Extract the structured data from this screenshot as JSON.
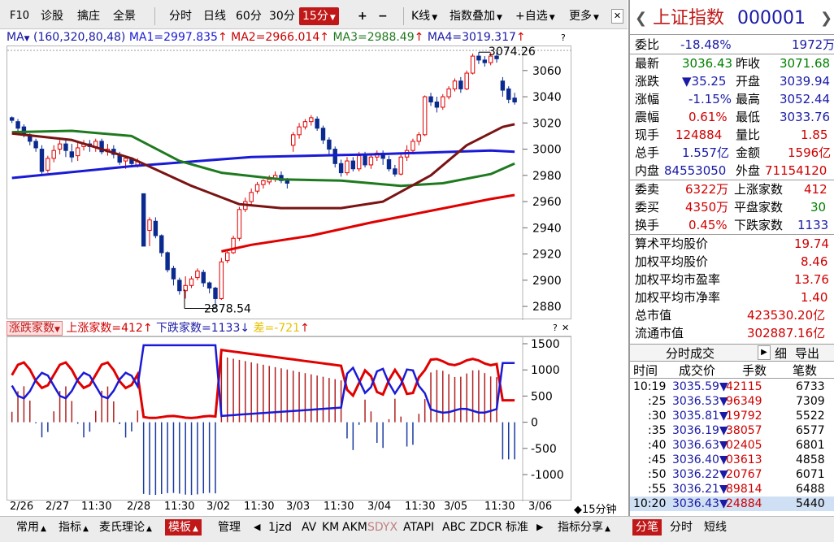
{
  "toolbar": {
    "items": [
      "F10",
      "诊股",
      "擒庄",
      "全景",
      "分时",
      "日线",
      "60分",
      "30分",
      "15分",
      "+",
      "−",
      "K线",
      "指数叠加",
      "+自选",
      "更多"
    ]
  },
  "ma": {
    "label": "MA",
    "params": "(160,320,80,48)",
    "ma1": "MA1=2997.835",
    "ma2": "MA2=2966.014",
    "ma3": "MA3=2988.49",
    "ma4": "MA4=3019.317",
    "question": "?"
  },
  "chart_data": [
    {
      "type": "candlestick",
      "yticks": [
        "3060",
        "3040",
        "3020",
        "3000",
        "2980",
        "2960",
        "2940",
        "2920",
        "2900",
        "2880"
      ],
      "ylim": [
        2872,
        3076
      ],
      "high_label": "3074.26",
      "low_label": "2878.54",
      "x_date_labels": [
        "2/26",
        "2/27",
        "11:30",
        "2/28",
        "11:30",
        "3/02",
        "11:30",
        "3/03",
        "11:30",
        "3/04",
        "11:30",
        "3/05",
        "11:30",
        "3/06"
      ],
      "period_label": "◆15分钟",
      "candles": [
        [
          3024,
          3022,
          3025,
          3020
        ],
        [
          3021,
          3016,
          3023,
          3013
        ],
        [
          3017,
          3012,
          3019,
          3009
        ],
        [
          3011,
          3006,
          3012,
          3003
        ],
        [
          3006,
          3001,
          3008,
          2998
        ],
        [
          3000,
          2983,
          3003,
          2980
        ],
        [
          2984,
          2993,
          2995,
          2982
        ],
        [
          2993,
          2999,
          3003,
          2990
        ],
        [
          3000,
          3004,
          3007,
          2996
        ],
        [
          3004,
          2999,
          3007,
          2994
        ],
        [
          2998,
          2994,
          3004,
          2990
        ],
        [
          2995,
          3001,
          3005,
          2991
        ],
        [
          3002,
          3004,
          3007,
          2999
        ],
        [
          3004,
          3002,
          3007,
          2998
        ],
        [
          3002,
          3006,
          3008,
          2998
        ],
        [
          3006,
          2998,
          3008,
          2996
        ],
        [
          2998,
          3000,
          3004,
          2995
        ],
        [
          3000,
          2996,
          3003,
          2993
        ],
        [
          2995,
          2990,
          2998,
          2988
        ],
        [
          2991,
          2993,
          2995,
          2985
        ],
        [
          2993,
          2989,
          2994,
          2986
        ],
        [
          2988,
          2991,
          2993,
          2986
        ],
        [
          2966,
          2926,
          2966,
          2926
        ],
        [
          2938,
          2946,
          2948,
          2926
        ],
        [
          2945,
          2934,
          2948,
          2932
        ],
        [
          2934,
          2921,
          2935,
          2918
        ],
        [
          2921,
          2908,
          2922,
          2906
        ],
        [
          2909,
          2901,
          2911,
          2896
        ],
        [
          2900,
          2892,
          2902,
          2889
        ],
        [
          2892,
          2896,
          2903,
          2886
        ],
        [
          2896,
          2901,
          2903,
          2894
        ],
        [
          2902,
          2907,
          2909,
          2900
        ],
        [
          2906,
          2898,
          2908,
          2895
        ],
        [
          2898,
          2894,
          2899,
          2890
        ],
        [
          2894,
          2886,
          2895,
          2879
        ],
        [
          2886,
          2914,
          2917,
          2885
        ],
        [
          2915,
          2921,
          2923,
          2913
        ],
        [
          2921,
          2932,
          2934,
          2920
        ],
        [
          2932,
          2954,
          2956,
          2930
        ],
        [
          2954,
          2960,
          2963,
          2952
        ],
        [
          2960,
          2967,
          2970,
          2958
        ],
        [
          2968,
          2973,
          2975,
          2966
        ],
        [
          2973,
          2976,
          2977,
          2970
        ],
        [
          2975,
          2977,
          2980,
          2973
        ],
        [
          2977,
          2980,
          2983,
          2975
        ],
        [
          2980,
          2976,
          2983,
          2974
        ],
        [
          2976,
          2974,
          2978,
          2970
        ],
        [
          3003,
          3011,
          3013,
          2998
        ],
        [
          3011,
          3017,
          3020,
          3008
        ],
        [
          3017,
          3021,
          3023,
          3015
        ],
        [
          3021,
          3024,
          3026,
          3018
        ],
        [
          3023,
          3016,
          3025,
          3014
        ],
        [
          3016,
          3007,
          3018,
          3004
        ],
        [
          3007,
          3000,
          3009,
          2996
        ],
        [
          3000,
          2989,
          3002,
          2986
        ],
        [
          2989,
          2982,
          2992,
          2979
        ],
        [
          2982,
          2991,
          2994,
          2980
        ],
        [
          2991,
          2985,
          2994,
          2983
        ],
        [
          2985,
          2995,
          2998,
          2983
        ],
        [
          2995,
          2988,
          2998,
          2986
        ],
        [
          2988,
          2994,
          2997,
          2985
        ],
        [
          2994,
          2997,
          2999,
          2991
        ],
        [
          2997,
          2993,
          2999,
          2988
        ],
        [
          2992,
          2985,
          2995,
          2983
        ],
        [
          2985,
          2981,
          2988,
          2979
        ],
        [
          2981,
          2994,
          2996,
          2980
        ],
        [
          2994,
          2999,
          3003,
          2991
        ],
        [
          2999,
          3006,
          3008,
          2996
        ],
        [
          3006,
          3011,
          3013,
          3003
        ],
        [
          3011,
          3040,
          3041,
          3010
        ],
        [
          3040,
          3036,
          3043,
          3033
        ],
        [
          3036,
          3032,
          3040,
          3028
        ],
        [
          3032,
          3040,
          3042,
          3030
        ],
        [
          3040,
          3046,
          3048,
          3038
        ],
        [
          3046,
          3052,
          3054,
          3044
        ],
        [
          3052,
          3046,
          3055,
          3043
        ],
        [
          3046,
          3058,
          3060,
          3045
        ],
        [
          3058,
          3071,
          3073,
          3057
        ],
        [
          3071,
          3068,
          3074,
          3065
        ],
        [
          3068,
          3066,
          3071,
          3063
        ],
        [
          3066,
          3071,
          3074,
          3064
        ],
        [
          3071,
          3069,
          3074,
          3066
        ],
        [
          3052,
          3045,
          3055,
          3040
        ],
        [
          3046,
          3038,
          3048,
          3035
        ],
        [
          3039,
          3036,
          3043,
          3034
        ]
      ],
      "ma_series": [
        {
          "name": "MA1",
          "color": "#1a1ad6",
          "points": [
            [
              0,
              2978
            ],
            [
              20,
              2987
            ],
            [
              40,
              2994
            ],
            [
              60,
              2996
            ],
            [
              80,
              2999
            ],
            [
              84,
              2998
            ]
          ]
        },
        {
          "name": "MA2",
          "color": "#e00000",
          "points": [
            [
              35,
              2922
            ],
            [
              40,
              2927
            ],
            [
              50,
              2934
            ],
            [
              60,
              2944
            ],
            [
              70,
              2953
            ],
            [
              80,
              2962
            ],
            [
              84,
              2965
            ]
          ]
        },
        {
          "name": "MA3",
          "color": "#1f7a1f",
          "points": [
            [
              0,
              3013
            ],
            [
              10,
              3014
            ],
            [
              20,
              3010
            ],
            [
              28,
              2991
            ],
            [
              35,
              2982
            ],
            [
              45,
              2977
            ],
            [
              55,
              2976
            ],
            [
              65,
              2972
            ],
            [
              72,
              2974
            ],
            [
              80,
              2981
            ],
            [
              84,
              2989
            ]
          ]
        },
        {
          "name": "MA4",
          "color": "#7a1414",
          "points": [
            [
              0,
              3012
            ],
            [
              10,
              3007
            ],
            [
              20,
              2993
            ],
            [
              30,
              2972
            ],
            [
              38,
              2958
            ],
            [
              45,
              2955
            ],
            [
              55,
              2955
            ],
            [
              62,
              2960
            ],
            [
              70,
              2980
            ],
            [
              76,
              3003
            ],
            [
              82,
              3017
            ],
            [
              84,
              3019
            ]
          ]
        }
      ]
    },
    {
      "type": "bar-line",
      "title": "涨跌家数",
      "legend": [
        "上涨家数=412",
        "下跌家数=1133",
        "差=-721"
      ],
      "yticks": [
        "1500",
        "1000",
        "500",
        "0",
        "-500",
        "-1000"
      ],
      "ylim": [
        -1450,
        1500
      ]
    }
  ],
  "indicator": {
    "name": "涨跌家数",
    "up": "上涨家数=412",
    "down": "下跌家数=1133",
    "diff": "差=-721"
  },
  "quote": {
    "name": "上证指数",
    "code": "000001",
    "weibi_label": "委比",
    "weibi": "-18.48%",
    "weicha": "1972万",
    "zuixin_label": "最新",
    "zuixin": "3036.43",
    "zuoshou_label": "昨收",
    "zuoshou": "3071.68",
    "zhangdie_label": "涨跌",
    "zhangdie": "▼35.25",
    "kaipan_label": "开盘",
    "kaipan": "3039.94",
    "zhangfu_label": "涨幅",
    "zhangfu": "-1.15%",
    "zuigao_label": "最高",
    "zuigao": "3052.44",
    "zhenfu_label": "震幅",
    "zhenfu": "0.61%",
    "zuidi_label": "最低",
    "zuidi": "3033.76",
    "xianshou_label": "现手",
    "xianshou": "124884",
    "liangbi_label": "量比",
    "liangbi": "1.85",
    "zongshou_label": "总手",
    "zongshou": "1.557亿",
    "jine_label": "金额",
    "jine": "1596亿",
    "neipan_label": "内盘",
    "neipan": "84553050",
    "waipan_label": "外盘",
    "waipan": "71154120",
    "weimai_label": "委卖",
    "weimai": "6322万",
    "up_count_label": "上涨家数",
    "up_count": "412",
    "weimai2_label": "委买",
    "weimai2": "4350万",
    "flat_count_label": "平盘家数",
    "flat_count": "30",
    "huanshou_label": "换手",
    "huanshou": "0.45%",
    "down_count_label": "下跌家数",
    "down_count": "1133",
    "avg_price_label": "算术平均股价",
    "avg_price": "19.74",
    "wavg_price_label": "加权平均股价",
    "wavg_price": "8.46",
    "pe_label": "加权平均市盈率",
    "pe": "13.76",
    "pb_label": "加权平均市净率",
    "pb": "1.40",
    "mktcap_label": "总市值",
    "mktcap": "423530.20亿",
    "float_label": "流通市值",
    "float": "302887.16亿"
  },
  "trades": {
    "header": "分时成交",
    "fine": "细",
    "export": "导出",
    "cols": [
      "时间",
      "成交价",
      "手数",
      "笔数"
    ],
    "rows": [
      {
        "time": "10:19",
        "price": "3035.59",
        "vol": "42115",
        "count": "6733"
      },
      {
        "time": ":25",
        "price": "3036.53",
        "vol": "96349",
        "count": "7309"
      },
      {
        "time": ":30",
        "price": "3035.81",
        "vol": "19792",
        "count": "5522"
      },
      {
        "time": ":35",
        "price": "3036.19",
        "vol": "38057",
        "count": "6577"
      },
      {
        "time": ":40",
        "price": "3036.63",
        "vol": "02405",
        "count": "6801"
      },
      {
        "time": ":45",
        "price": "3036.40",
        "vol": "03613",
        "count": "4858"
      },
      {
        "time": ":50",
        "price": "3036.22",
        "vol": "20767",
        "count": "6071"
      },
      {
        "time": ":55",
        "price": "3036.21",
        "vol": "89814",
        "count": "6488"
      },
      {
        "time": "10:20",
        "price": "3036.43",
        "vol": "24884",
        "count": "5440"
      }
    ]
  },
  "bottom": {
    "items": [
      "常用",
      "指标",
      "麦氏理论",
      "模板",
      "管理",
      "1jzd",
      "AV",
      "KM",
      "AKM",
      "SDYX",
      "ATAPI",
      "ABC",
      "ZDCR",
      "标准",
      "指标分享"
    ],
    "tabs": [
      "分笔",
      "分时",
      "短线"
    ]
  }
}
